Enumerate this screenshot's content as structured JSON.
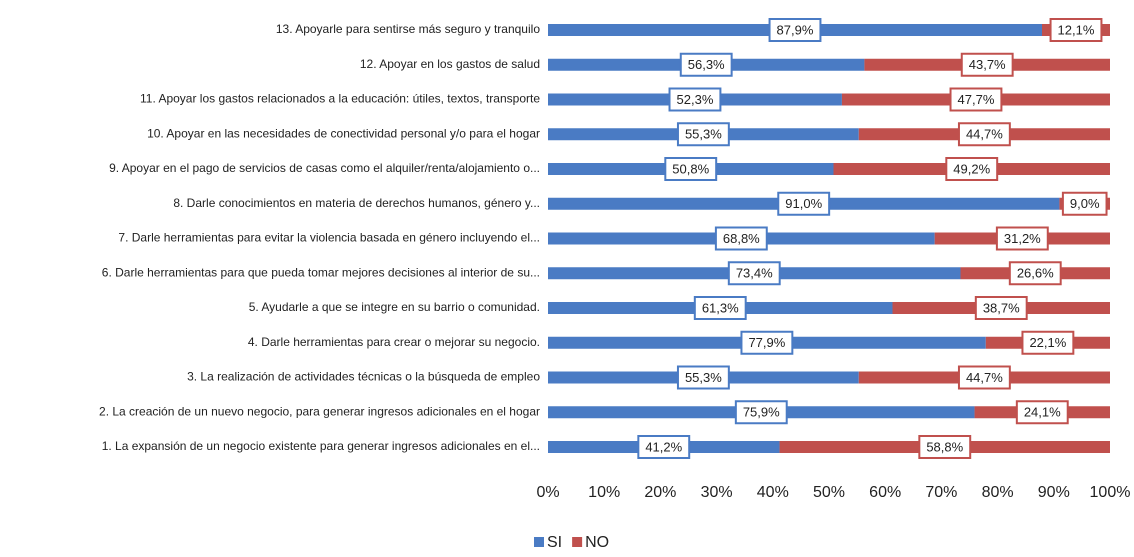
{
  "chart_data": {
    "type": "stacked-barh",
    "categories": [
      "13. Apoyarle para sentirse más seguro y tranquilo",
      "12. Apoyar en los gastos de salud",
      "11. Apoyar los gastos relacionados a la educación: útiles, textos, transporte",
      "10. Apoyar en las necesidades de conectividad personal y/o para el hogar",
      "9. Apoyar en el pago de servicios de casas como el alquiler/renta/alojamiento o...",
      "8. Darle conocimientos en materia de derechos humanos, género y...",
      "7. Darle herramientas para evitar la violencia basada en género incluyendo el...",
      "6. Darle herramientas para que pueda tomar mejores decisiones al interior de su...",
      "5. Ayudarle a que se integre en su barrio o comunidad.",
      "4. Darle herramientas para crear o mejorar su negocio.",
      "3. La realización de actividades técnicas o la búsqueda de empleo",
      "2. La creación de un nuevo negocio, para generar ingresos adicionales en el hogar",
      "1. La expansión de un negocio existente para generar ingresos adicionales en el..."
    ],
    "series": [
      {
        "name": "SI",
        "color": "#4a7bc4",
        "values": [
          87.9,
          56.3,
          52.3,
          55.3,
          50.8,
          91.0,
          68.8,
          73.4,
          61.3,
          77.9,
          55.3,
          75.9,
          41.2
        ],
        "value_labels": [
          "87,9%",
          "56,3%",
          "52,3%",
          "55,3%",
          "50,8%",
          "91,0%",
          "68,8%",
          "73,4%",
          "61,3%",
          "77,9%",
          "55,3%",
          "75,9%",
          "41,2%"
        ]
      },
      {
        "name": "NO",
        "color": "#c0504d",
        "values": [
          12.1,
          43.7,
          47.7,
          44.7,
          49.2,
          9.0,
          31.2,
          26.6,
          38.7,
          22.1,
          44.7,
          24.1,
          58.8
        ],
        "value_labels": [
          "12,1%",
          "43,7%",
          "47,7%",
          "44,7%",
          "49,2%",
          "9,0%",
          "31,2%",
          "26,6%",
          "38,7%",
          "22,1%",
          "44,7%",
          "24,1%",
          "58,8%"
        ]
      }
    ],
    "xlim": [
      0,
      100
    ],
    "xticks": [
      {
        "value": 0,
        "label": "0%"
      },
      {
        "value": 10,
        "label": "10%"
      },
      {
        "value": 20,
        "label": "20%"
      },
      {
        "value": 30,
        "label": "30%"
      },
      {
        "value": 40,
        "label": "40%"
      },
      {
        "value": 50,
        "label": "50%"
      },
      {
        "value": 60,
        "label": "60%"
      },
      {
        "value": 70,
        "label": "70%"
      },
      {
        "value": 80,
        "label": "80%"
      },
      {
        "value": 90,
        "label": "90%"
      },
      {
        "value": 100,
        "label": "100%"
      }
    ],
    "legend": "bottom"
  }
}
